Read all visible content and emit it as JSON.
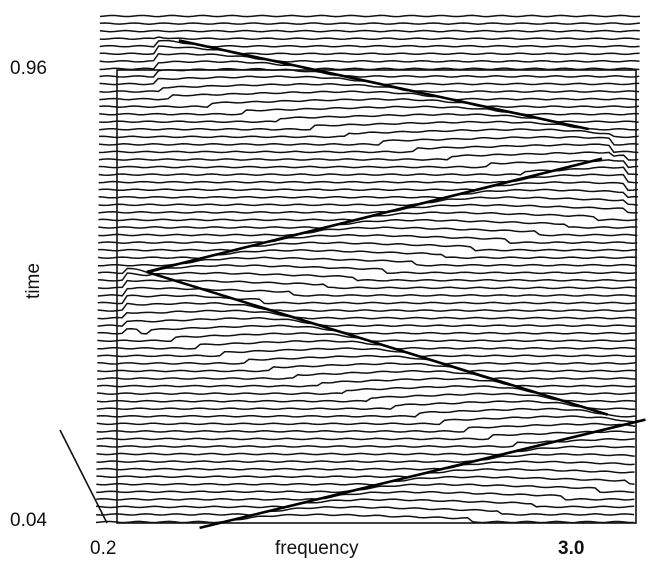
{
  "chart_data": {
    "type": "line",
    "title": "",
    "xlabel": "frequency",
    "ylabel": "time",
    "x_tick_labels": [
      "0.2",
      "3.0"
    ],
    "y_tick_labels": [
      "0.96",
      "0.04"
    ],
    "xlim": [
      0.2,
      3.0
    ],
    "ylim": [
      0.04,
      0.96
    ],
    "trace_count": 68,
    "ridges": [
      {
        "name": "",
        "x": [
          0.58,
          2.75
        ],
        "y": [
          1.02,
          0.84
        ]
      },
      {
        "name": "",
        "x": [
          0.41,
          2.82
        ],
        "y": [
          0.55,
          0.78
        ]
      },
      {
        "name": "",
        "x": [
          0.41,
          2.85
        ],
        "y": [
          0.55,
          0.26
        ]
      },
      {
        "name": "",
        "x": [
          0.69,
          3.05
        ],
        "y": [
          0.03,
          0.25
        ]
      }
    ],
    "grid": false,
    "legend": "none"
  }
}
